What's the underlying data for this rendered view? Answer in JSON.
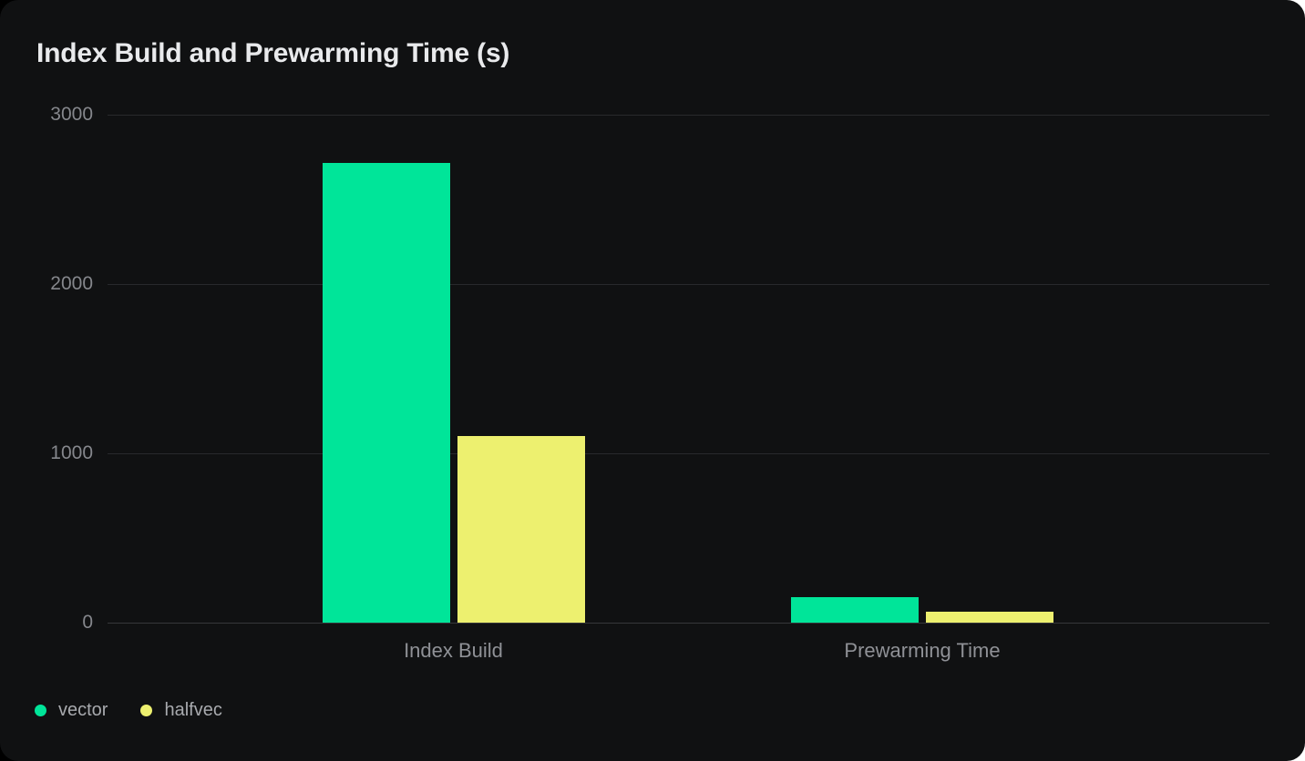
{
  "chart_data": {
    "type": "bar",
    "title": "Index Build and Prewarming Time (s)",
    "categories": [
      "Index Build",
      "Prewarming Time"
    ],
    "series": [
      {
        "name": "vector",
        "color": "#00e599",
        "values": [
          2715,
          150
        ]
      },
      {
        "name": "halfvec",
        "color": "#edf06f",
        "values": [
          1100,
          65
        ]
      }
    ],
    "ylabel": "",
    "xlabel": "",
    "ylim": [
      0,
      3000
    ],
    "yticks": [
      0,
      1000,
      2000,
      3000
    ],
    "unit": "seconds",
    "grid": "horizontal",
    "legend_position": "bottom-left"
  },
  "colors": {
    "page_background": "#ffffff",
    "page_left_edge": "#000000",
    "card_background": "#101112",
    "title_text": "#e9eaec",
    "tick_text": "#85878c",
    "category_text": "#8f9196",
    "legend_text": "#a8aaae",
    "gridline": "#28292c",
    "axis_line": "#36373a",
    "series_vector": "#00e599",
    "series_halfvec": "#edf06f"
  }
}
